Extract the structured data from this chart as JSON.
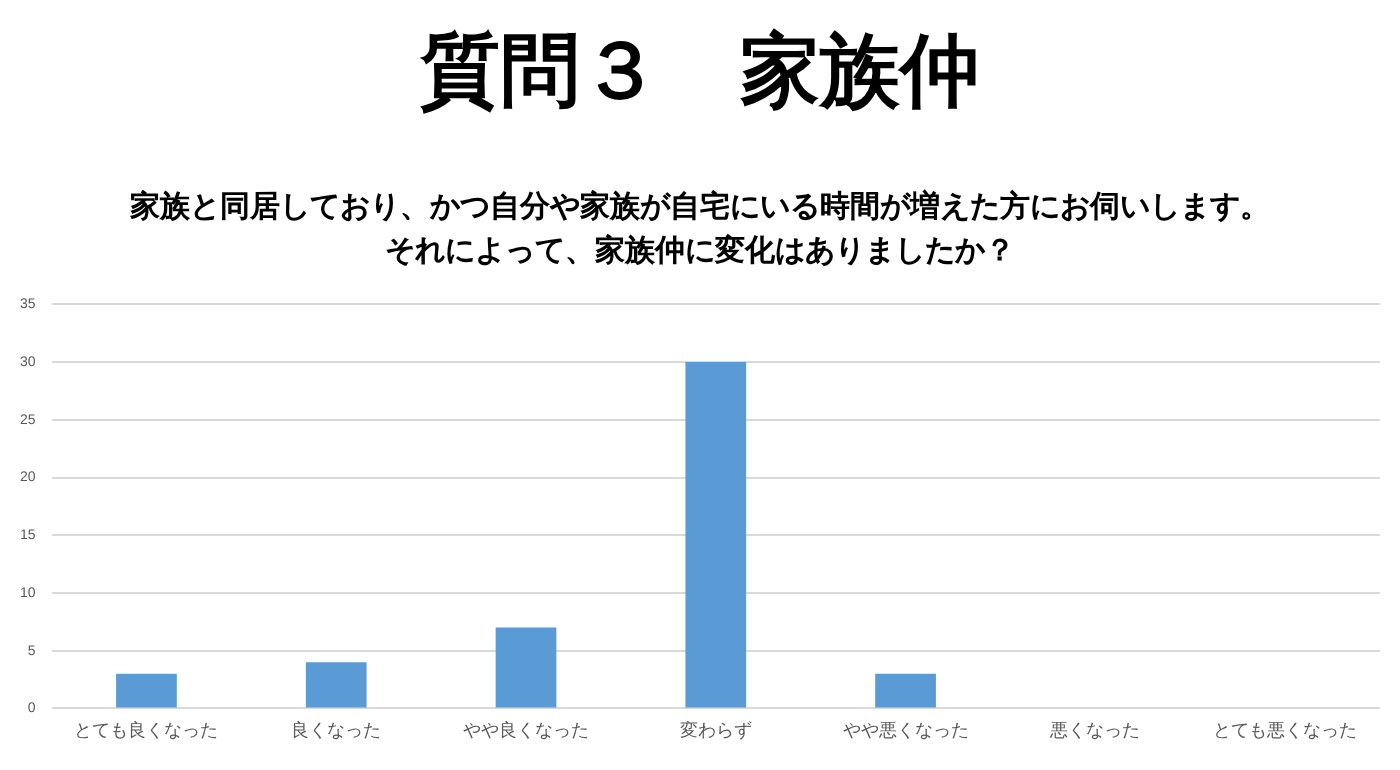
{
  "chart_data": {
    "type": "bar",
    "title": "質問３　家族仲",
    "subtitle": "家族と同居しており、かつ自分や家族が自宅にいる時間が増えた方にお伺いします。それによって、家族仲に変化はありましたか？",
    "categories": [
      "とても良くなった",
      "良くなった",
      "やや良くなった",
      "変わらず",
      "やや悪くなった",
      "悪くなった",
      "とても悪くなった"
    ],
    "values": [
      3,
      4,
      7,
      30,
      3,
      0,
      0
    ],
    "color": "#5b9bd5",
    "ylim": [
      0,
      35
    ],
    "yticks": [
      0,
      5,
      10,
      15,
      20,
      25,
      30,
      35
    ],
    "grid": "y",
    "legend": false
  }
}
